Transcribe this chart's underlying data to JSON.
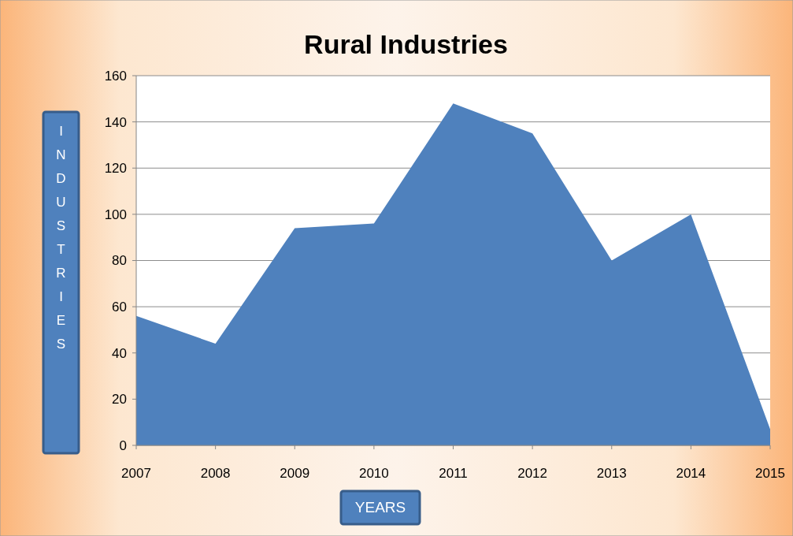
{
  "chart_data": {
    "type": "area",
    "title": "Rural Industries",
    "xlabel": "YEARS",
    "ylabel": "INDUSTRIES",
    "categories": [
      "2007",
      "2008",
      "2009",
      "2010",
      "2011",
      "2012",
      "2013",
      "2014",
      "2015"
    ],
    "series": [
      {
        "color": "#4f81bd",
        "values": [
          56,
          44,
          94,
          96,
          148,
          135,
          80,
          100,
          7
        ]
      }
    ],
    "ylim": [
      0,
      160
    ],
    "yticks": [
      0,
      20,
      40,
      60,
      80,
      100,
      120,
      140,
      160
    ],
    "grid": "y"
  }
}
